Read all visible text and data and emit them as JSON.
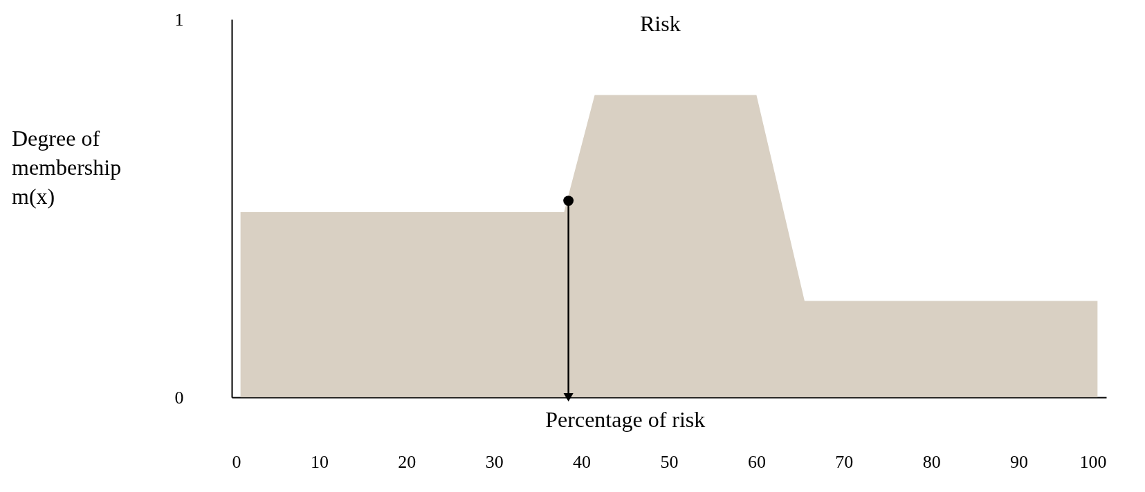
{
  "chart_data": {
    "type": "area",
    "title": "Risk",
    "xlabel": "Percentage of risk",
    "ylabel": "Degree of membership m(x)",
    "grid": false,
    "xlim": [
      0,
      100
    ],
    "xticks": [
      0,
      10,
      20,
      30,
      40,
      50,
      60,
      70,
      80,
      90,
      100
    ],
    "ylim": [
      0,
      1
    ],
    "yticks": [
      0,
      1
    ],
    "series": [
      {
        "color": "#d9d0c3",
        "x": [
          1,
          38,
          41.5,
          60,
          65.5,
          99
        ],
        "values": [
          0.49,
          0.49,
          0.8,
          0.8,
          0.255,
          0.255
        ]
      },
      {
        "type": "line",
        "color": "#000000",
        "x": [
          38.5,
          38.5
        ],
        "values": [
          0.52,
          0
        ]
      },
      {
        "type": "scatter",
        "color": "#000000",
        "marker": "circle",
        "x": [
          38.5
        ],
        "values": [
          0.52
        ]
      }
    ]
  }
}
